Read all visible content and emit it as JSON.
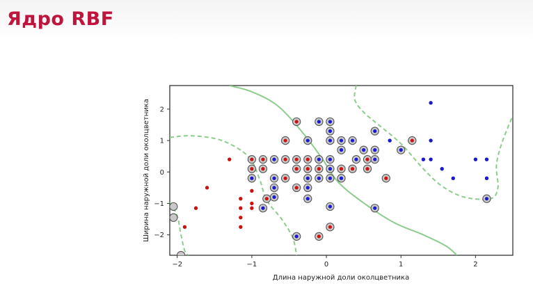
{
  "slide": {
    "title": "Ядро RBF"
  },
  "chart_data": {
    "type": "scatter",
    "title": "",
    "xlabel": "Длина наружной доли околцветника",
    "ylabel": "Ширина наружной доли околцветника",
    "xlim": [
      -2.1,
      2.5
    ],
    "ylim": [
      -2.65,
      2.75
    ],
    "xticks": [
      -2,
      -1,
      0,
      1,
      2
    ],
    "yticks": [
      -2,
      -1,
      0,
      1,
      2
    ],
    "grid": false,
    "legend": "none",
    "colors": {
      "class_red": "#cc1111",
      "class_blue": "#1a1acc",
      "boundary": "#8ccc8c",
      "support_ring": "#555555",
      "support_fill": "#c9c9c9"
    },
    "series": [
      {
        "class": "red",
        "points": [
          [
            -1.9,
            -1.75
          ],
          [
            -1.75,
            -1.15
          ],
          [
            -1.6,
            -0.5
          ],
          [
            -1.3,
            0.4
          ],
          [
            -1.15,
            -0.85
          ],
          [
            -1.15,
            -1.15
          ],
          [
            -1.15,
            -1.45
          ],
          [
            -1.15,
            -1.75
          ],
          [
            -1.0,
            -1.15
          ],
          [
            -1.0,
            -1.0
          ],
          [
            -1.0,
            -0.6
          ]
        ]
      },
      {
        "class": "blue",
        "points": [
          [
            0.85,
            1.0
          ],
          [
            1.4,
            2.2
          ],
          [
            1.4,
            1.0
          ],
          [
            1.3,
            0.4
          ],
          [
            1.4,
            0.4
          ],
          [
            1.55,
            0.1
          ],
          [
            1.7,
            -0.2
          ],
          [
            2.0,
            0.4
          ],
          [
            2.15,
            0.4
          ],
          [
            2.15,
            -0.2
          ]
        ]
      }
    ],
    "support_vectors": [
      {
        "x": -0.4,
        "y": 1.6,
        "class": "red"
      },
      {
        "x": -0.55,
        "y": 1.0,
        "class": "red"
      },
      {
        "x": -1.0,
        "y": 0.4,
        "class": "red"
      },
      {
        "x": -0.85,
        "y": 0.4,
        "class": "red"
      },
      {
        "x": -1.0,
        "y": 0.1,
        "class": "red"
      },
      {
        "x": -0.85,
        "y": 0.1,
        "class": "red"
      },
      {
        "x": -0.55,
        "y": 0.4,
        "class": "red"
      },
      {
        "x": -0.4,
        "y": 0.4,
        "class": "red"
      },
      {
        "x": -0.25,
        "y": 0.4,
        "class": "red"
      },
      {
        "x": -0.4,
        "y": 0.1,
        "class": "red"
      },
      {
        "x": -0.25,
        "y": 0.1,
        "class": "red"
      },
      {
        "x": -0.1,
        "y": 0.1,
        "class": "red"
      },
      {
        "x": -0.55,
        "y": -0.2,
        "class": "red"
      },
      {
        "x": -0.4,
        "y": -0.5,
        "class": "red"
      },
      {
        "x": -0.8,
        "y": -0.85,
        "class": "red"
      },
      {
        "x": -0.1,
        "y": -2.05,
        "class": "red"
      },
      {
        "x": 0.05,
        "y": -1.75,
        "class": "red"
      },
      {
        "x": 0.2,
        "y": 0.1,
        "class": "red"
      },
      {
        "x": 0.35,
        "y": 0.1,
        "class": "red"
      },
      {
        "x": 0.55,
        "y": 0.4,
        "class": "red"
      },
      {
        "x": 0.55,
        "y": 0.1,
        "class": "red"
      },
      {
        "x": 0.8,
        "y": -0.2,
        "class": "red"
      },
      {
        "x": 1.15,
        "y": 1.0,
        "class": "red"
      },
      {
        "x": 0.05,
        "y": 1.6,
        "class": "blue"
      },
      {
        "x": 0.05,
        "y": 1.3,
        "class": "blue"
      },
      {
        "x": -0.1,
        "y": 1.6,
        "class": "blue"
      },
      {
        "x": -0.25,
        "y": 1.0,
        "class": "blue"
      },
      {
        "x": 0.05,
        "y": 1.0,
        "class": "blue"
      },
      {
        "x": 0.2,
        "y": 1.0,
        "class": "blue"
      },
      {
        "x": 0.2,
        "y": 0.7,
        "class": "blue"
      },
      {
        "x": 0.35,
        "y": 1.0,
        "class": "blue"
      },
      {
        "x": 0.5,
        "y": 0.7,
        "class": "blue"
      },
      {
        "x": 0.65,
        "y": 1.3,
        "class": "blue"
      },
      {
        "x": 0.65,
        "y": 0.7,
        "class": "blue"
      },
      {
        "x": 0.65,
        "y": 0.4,
        "class": "blue"
      },
      {
        "x": 1.0,
        "y": 0.7,
        "class": "blue"
      },
      {
        "x": 0.4,
        "y": 0.4,
        "class": "blue"
      },
      {
        "x": 0.05,
        "y": 0.4,
        "class": "blue"
      },
      {
        "x": -0.1,
        "y": 0.4,
        "class": "blue"
      },
      {
        "x": -0.7,
        "y": 0.4,
        "class": "blue"
      },
      {
        "x": 0.05,
        "y": 0.1,
        "class": "blue"
      },
      {
        "x": -0.1,
        "y": -0.2,
        "class": "blue"
      },
      {
        "x": 0.05,
        "y": -0.2,
        "class": "blue"
      },
      {
        "x": 0.2,
        "y": -0.2,
        "class": "blue"
      },
      {
        "x": -0.25,
        "y": -0.2,
        "class": "blue"
      },
      {
        "x": -0.25,
        "y": -0.5,
        "class": "blue"
      },
      {
        "x": -0.7,
        "y": -0.2,
        "class": "blue"
      },
      {
        "x": -0.7,
        "y": -0.5,
        "class": "blue"
      },
      {
        "x": -0.7,
        "y": -0.8,
        "class": "blue"
      },
      {
        "x": -1.0,
        "y": -0.2,
        "class": "blue"
      },
      {
        "x": -0.85,
        "y": -1.15,
        "class": "blue"
      },
      {
        "x": -0.25,
        "y": -0.85,
        "class": "blue"
      },
      {
        "x": 0.05,
        "y": -1.1,
        "class": "blue"
      },
      {
        "x": 0.65,
        "y": -1.15,
        "class": "blue"
      },
      {
        "x": -0.4,
        "y": -2.05,
        "class": "blue"
      },
      {
        "x": 2.15,
        "y": -0.85,
        "class": "blue"
      },
      {
        "x": -2.05,
        "y": -1.1,
        "class": "none"
      },
      {
        "x": -2.05,
        "y": -1.45,
        "class": "none"
      },
      {
        "x": -1.95,
        "y": -2.65,
        "class": "none"
      }
    ],
    "decision_boundary": {
      "style": "solid",
      "points": [
        [
          -1.3,
          2.75
        ],
        [
          -1.0,
          2.55
        ],
        [
          -0.65,
          2.1
        ],
        [
          -0.3,
          1.2
        ],
        [
          -0.05,
          0.4
        ],
        [
          0.15,
          -0.3
        ],
        [
          0.45,
          -0.9
        ],
        [
          0.9,
          -1.6
        ],
        [
          1.3,
          -2.0
        ],
        [
          1.6,
          -2.35
        ],
        [
          1.75,
          -2.65
        ]
      ]
    },
    "margin_boundaries": [
      {
        "style": "dashed",
        "points": [
          [
            -2.1,
            1.1
          ],
          [
            -1.8,
            1.15
          ],
          [
            -1.4,
            1.0
          ],
          [
            -1.05,
            0.5
          ],
          [
            -0.9,
            -0.2
          ],
          [
            -0.8,
            -0.9
          ],
          [
            -0.6,
            -1.5
          ],
          [
            -0.45,
            -2.1
          ],
          [
            -0.4,
            -2.65
          ]
        ]
      },
      {
        "style": "dashed",
        "points": [
          [
            -2.1,
            -0.95
          ],
          [
            -2.0,
            -1.4
          ],
          [
            -1.95,
            -2.0
          ],
          [
            -1.9,
            -2.5
          ],
          [
            -1.85,
            -2.65
          ]
        ]
      },
      {
        "style": "dashed",
        "points": [
          [
            0.4,
            2.75
          ],
          [
            0.38,
            2.3
          ],
          [
            0.5,
            1.9
          ],
          [
            0.7,
            1.5
          ],
          [
            1.0,
            0.9
          ],
          [
            1.3,
            0.1
          ],
          [
            1.55,
            -0.45
          ],
          [
            1.85,
            -0.8
          ],
          [
            2.2,
            -0.85
          ],
          [
            2.3,
            -0.5
          ],
          [
            2.28,
            0.2
          ],
          [
            2.35,
            0.9
          ],
          [
            2.5,
            1.8
          ]
        ]
      }
    ]
  }
}
